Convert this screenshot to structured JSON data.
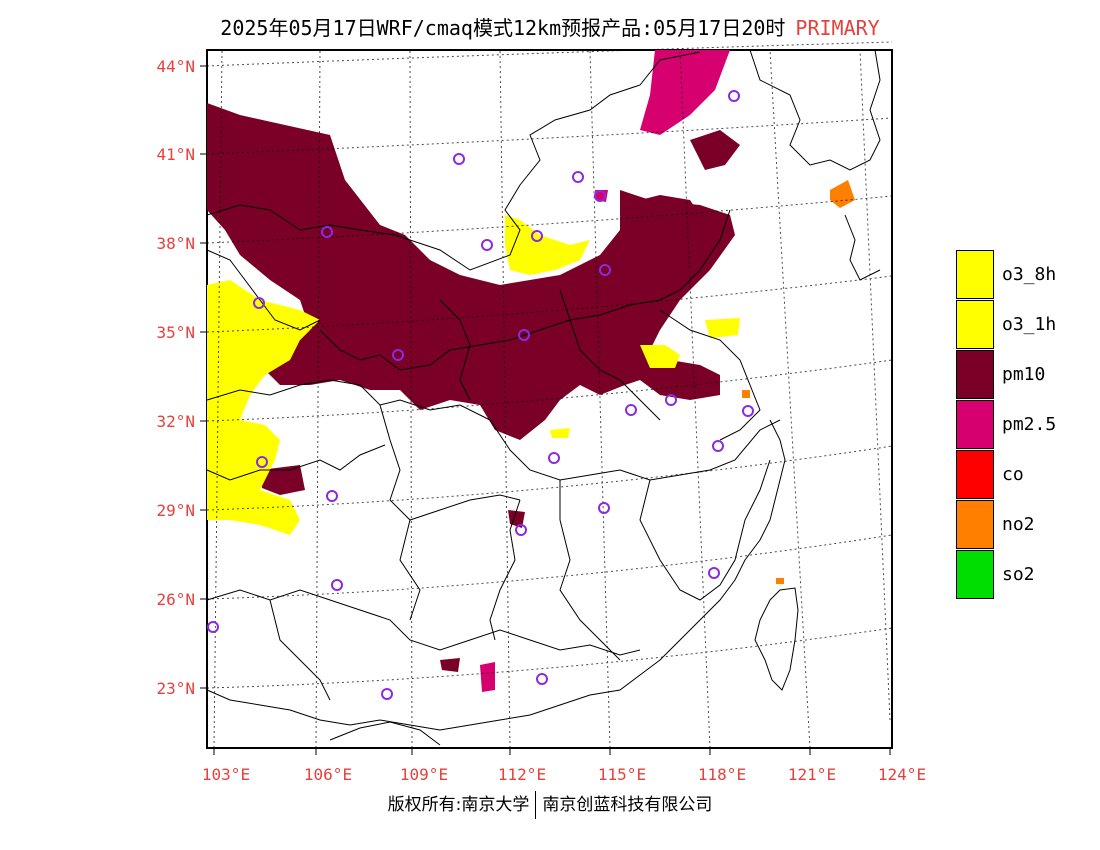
{
  "header": {
    "title": "2025年05月17日WRF/cmaq模式12km预报产品:05月17日20时",
    "tag": "PRIMARY"
  },
  "map": {
    "lat_labels": [
      "44°N",
      "41°N",
      "38°N",
      "35°N",
      "32°N",
      "29°N",
      "26°N",
      "23°N"
    ],
    "lon_labels": [
      "103°E",
      "106°E",
      "109°E",
      "112°E",
      "115°E",
      "118°E",
      "121°E",
      "124°E"
    ],
    "label_color": "#e8403c",
    "station_color": "#8a2be2"
  },
  "legend": [
    {
      "label": "o3_8h",
      "color": "#ffff00"
    },
    {
      "label": "o3_1h",
      "color": "#ffff00"
    },
    {
      "label": "pm10",
      "color": "#7a0027"
    },
    {
      "label": "pm2.5",
      "color": "#d6006e"
    },
    {
      "label": "co",
      "color": "#ff0000"
    },
    {
      "label": "no2",
      "color": "#ff7f00"
    },
    {
      "label": "so2",
      "color": "#00dd00"
    }
  ],
  "footer": {
    "left": "版权所有:南京大学",
    "right": "南京创蓝科技有限公司"
  }
}
